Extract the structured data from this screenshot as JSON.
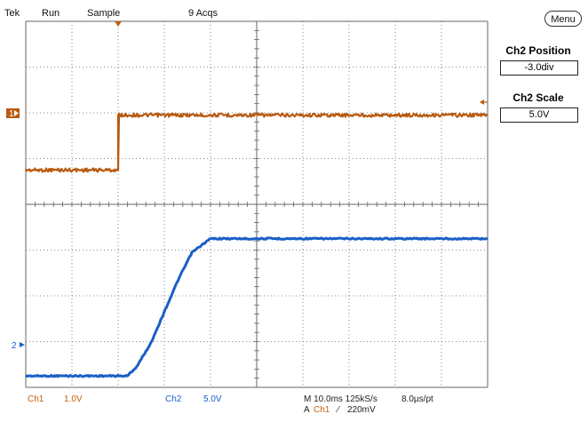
{
  "status_bar": {
    "brand": "Tek",
    "run_state": "Run",
    "acq_mode": "Sample",
    "acq_count": "9 Acqs"
  },
  "right_panel": {
    "menu_label": "Menu",
    "ch2_position_label": "Ch2 Position",
    "ch2_position_value": "-3.0div",
    "ch2_scale_label": "Ch2 Scale",
    "ch2_scale_value": "5.0V"
  },
  "channel_markers": {
    "ch1": "1",
    "ch2": "2"
  },
  "readout": {
    "ch1_label": "Ch1",
    "ch1_scale": "1.0V",
    "ch2_label": "Ch2",
    "ch2_scale": "5.0V",
    "timebase": "M 10.0ms 125kS/s",
    "sample_interval": "8.0µs/pt",
    "trigger_prefix": "A",
    "trigger_source": "Ch1",
    "trigger_slope": "∕",
    "trigger_level": "220mV"
  },
  "colors": {
    "ch1": "#b85a10",
    "ch2": "#1a5fc8",
    "graticule": "#666666"
  },
  "chart_data": {
    "type": "line",
    "x_units": "ms",
    "x_range": [
      -10,
      90
    ],
    "series": [
      {
        "name": "Ch1",
        "color": "#b85a10",
        "x": [
          -10,
          10,
          10,
          90
        ],
        "y": [
          -1.0,
          -1.0,
          0.0,
          0.0
        ]
      },
      {
        "name": "Ch2",
        "color": "#1a5fc8",
        "x": [
          -10,
          12,
          14,
          17,
          20,
          23,
          26,
          30,
          90
        ],
        "y": [
          -3.0,
          -3.0,
          -2.8,
          -2.3,
          -1.6,
          -0.9,
          -0.3,
          0.0,
          0.0
        ]
      }
    ]
  }
}
